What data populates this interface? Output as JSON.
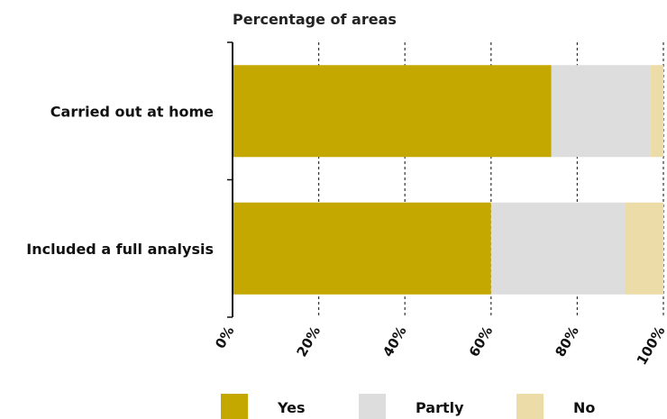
{
  "chart_data": {
    "type": "bar",
    "orientation": "horizontal",
    "stacked": true,
    "title": "Percentage of areas",
    "categories": [
      "Carried out at home",
      "Included a full analysis"
    ],
    "series": [
      {
        "name": "Yes",
        "color": "#c4a800",
        "values": [
          74,
          60
        ]
      },
      {
        "name": "Partly",
        "color": "#dddddd",
        "values": [
          23,
          31
        ]
      },
      {
        "name": "No",
        "color": "#ecdca8",
        "values": [
          3,
          9
        ]
      }
    ],
    "xlim": [
      0,
      100
    ],
    "x_ticks": [
      0,
      20,
      40,
      60,
      80,
      100
    ],
    "x_tick_labels": [
      "0%",
      "20%",
      "40%",
      "60%",
      "80%",
      "100%"
    ],
    "grid": "vertical dashed",
    "legend_position": "bottom"
  }
}
